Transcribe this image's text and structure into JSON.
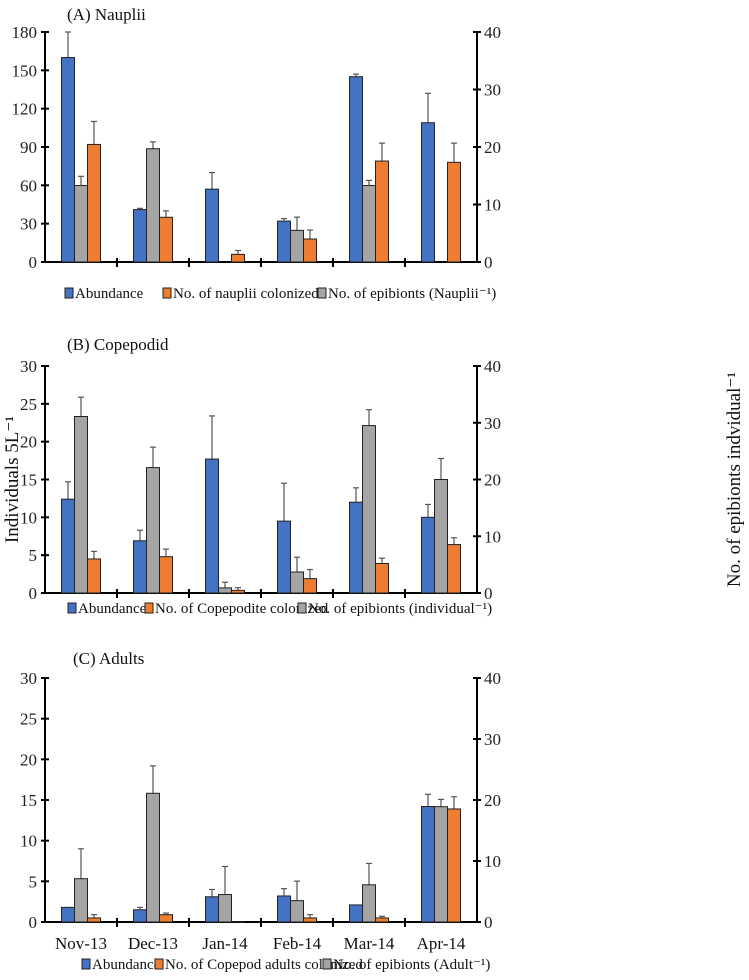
{
  "chart_data": [
    {
      "type": "bar",
      "title": "(A) Nauplii",
      "categories": [
        "Nov-13",
        "Dec-13",
        "Jan-14",
        "Feb-14",
        "Mar-14",
        "Apr-14"
      ],
      "ylim": [
        0,
        180
      ],
      "yticks": [
        0,
        30,
        60,
        90,
        120,
        150,
        180
      ],
      "y2lim": [
        0,
        40
      ],
      "y2ticks": [
        0,
        10,
        20,
        30,
        40
      ],
      "show_xlabels": false,
      "series": [
        {
          "name": "Abundance",
          "axis": "left",
          "color": "#4472C4",
          "values": [
            160,
            41,
            57,
            32,
            145,
            109
          ],
          "err": [
            20,
            1,
            13,
            2,
            2,
            23
          ]
        },
        {
          "name": "No. of epibionts (Nauplii⁻¹)",
          "axis": "right",
          "color": "#A5A5A5",
          "values": [
            13.3,
            19.7,
            0,
            5.5,
            13.3,
            0
          ],
          "err": [
            1.6,
            1.2,
            0,
            2.3,
            0.9,
            0
          ]
        },
        {
          "name": "No. of nauplii colonized",
          "axis": "left",
          "color": "#ED7D31",
          "values": [
            92,
            35,
            6,
            18,
            79,
            78
          ],
          "err": [
            18,
            5,
            3,
            7,
            14,
            15
          ]
        }
      ],
      "legend": [
        "Abundance",
        "No. of nauplii colonized",
        "No. of epibionts (Nauplii⁻¹)"
      ]
    },
    {
      "type": "bar",
      "title": "(B) Copepodid",
      "categories": [
        "Nov-13",
        "Dec-13",
        "Jan-14",
        "Feb-14",
        "Mar-14",
        "Apr-14"
      ],
      "ylabel": "Individuals 5L⁻¹",
      "y2label": "No. of epibionts indvidual⁻¹",
      "ylim": [
        0,
        30
      ],
      "yticks": [
        0,
        5,
        10,
        15,
        20,
        25,
        30
      ],
      "y2lim": [
        0,
        40
      ],
      "y2ticks": [
        0,
        10,
        20,
        30,
        40
      ],
      "show_xlabels": false,
      "series": [
        {
          "name": "Abundance",
          "axis": "left",
          "color": "#4472C4",
          "values": [
            12.4,
            6.9,
            17.7,
            9.5,
            12,
            10
          ],
          "err": [
            2.3,
            1.4,
            5.7,
            5,
            1.9,
            1.7
          ]
        },
        {
          "name": "No. of epibionts (individual⁻¹)",
          "axis": "right",
          "color": "#A5A5A5",
          "values": [
            31.1,
            22.1,
            0.9,
            3.7,
            29.5,
            20
          ],
          "err": [
            3.4,
            3.6,
            1,
            2.6,
            2.8,
            3.7
          ]
        },
        {
          "name": "No. of Copepodite colonized",
          "axis": "left",
          "color": "#ED7D31",
          "values": [
            4.5,
            4.8,
            0.35,
            1.9,
            3.9,
            6.4
          ],
          "err": [
            1,
            1,
            0.35,
            1.2,
            0.7,
            0.9
          ]
        }
      ],
      "legend": [
        "Abundance",
        "No. of Copepodite colonized",
        "No. of epibionts (individual⁻¹)"
      ]
    },
    {
      "type": "bar",
      "title": "(C) Adults",
      "categories": [
        "Nov-13",
        "Dec-13",
        "Jan-14",
        "Feb-14",
        "Mar-14",
        "Apr-14"
      ],
      "ylim": [
        0,
        30
      ],
      "yticks": [
        0,
        5,
        10,
        15,
        20,
        25,
        30
      ],
      "y2lim": [
        0,
        40
      ],
      "y2ticks": [
        0,
        10,
        20,
        30,
        40
      ],
      "show_xlabels": true,
      "series": [
        {
          "name": "Abundance",
          "axis": "left",
          "color": "#4472C4",
          "values": [
            1.8,
            1.5,
            3.1,
            3.2,
            2.1,
            14.2
          ],
          "err": [
            0,
            0.3,
            0.9,
            0.9,
            0,
            1.5
          ]
        },
        {
          "name": "No. of epibionts (Adult⁻¹)",
          "axis": "right",
          "color": "#A5A5A5",
          "values": [
            7.1,
            21.1,
            4.5,
            3.5,
            6.1,
            18.9
          ],
          "err": [
            4.9,
            4.5,
            4.6,
            3.2,
            3.5,
            1.2
          ]
        },
        {
          "name": "No. of Copepod adults colonized",
          "axis": "left",
          "color": "#ED7D31",
          "values": [
            0.5,
            0.9,
            0.05,
            0.5,
            0.5,
            13.9
          ],
          "err": [
            0.4,
            0.2,
            0,
            0.4,
            0.2,
            1.5
          ]
        }
      ],
      "legend": [
        "Abundance",
        "No. of Copepod adults colonized",
        "No. of epibionts (Adult⁻¹)"
      ]
    }
  ]
}
